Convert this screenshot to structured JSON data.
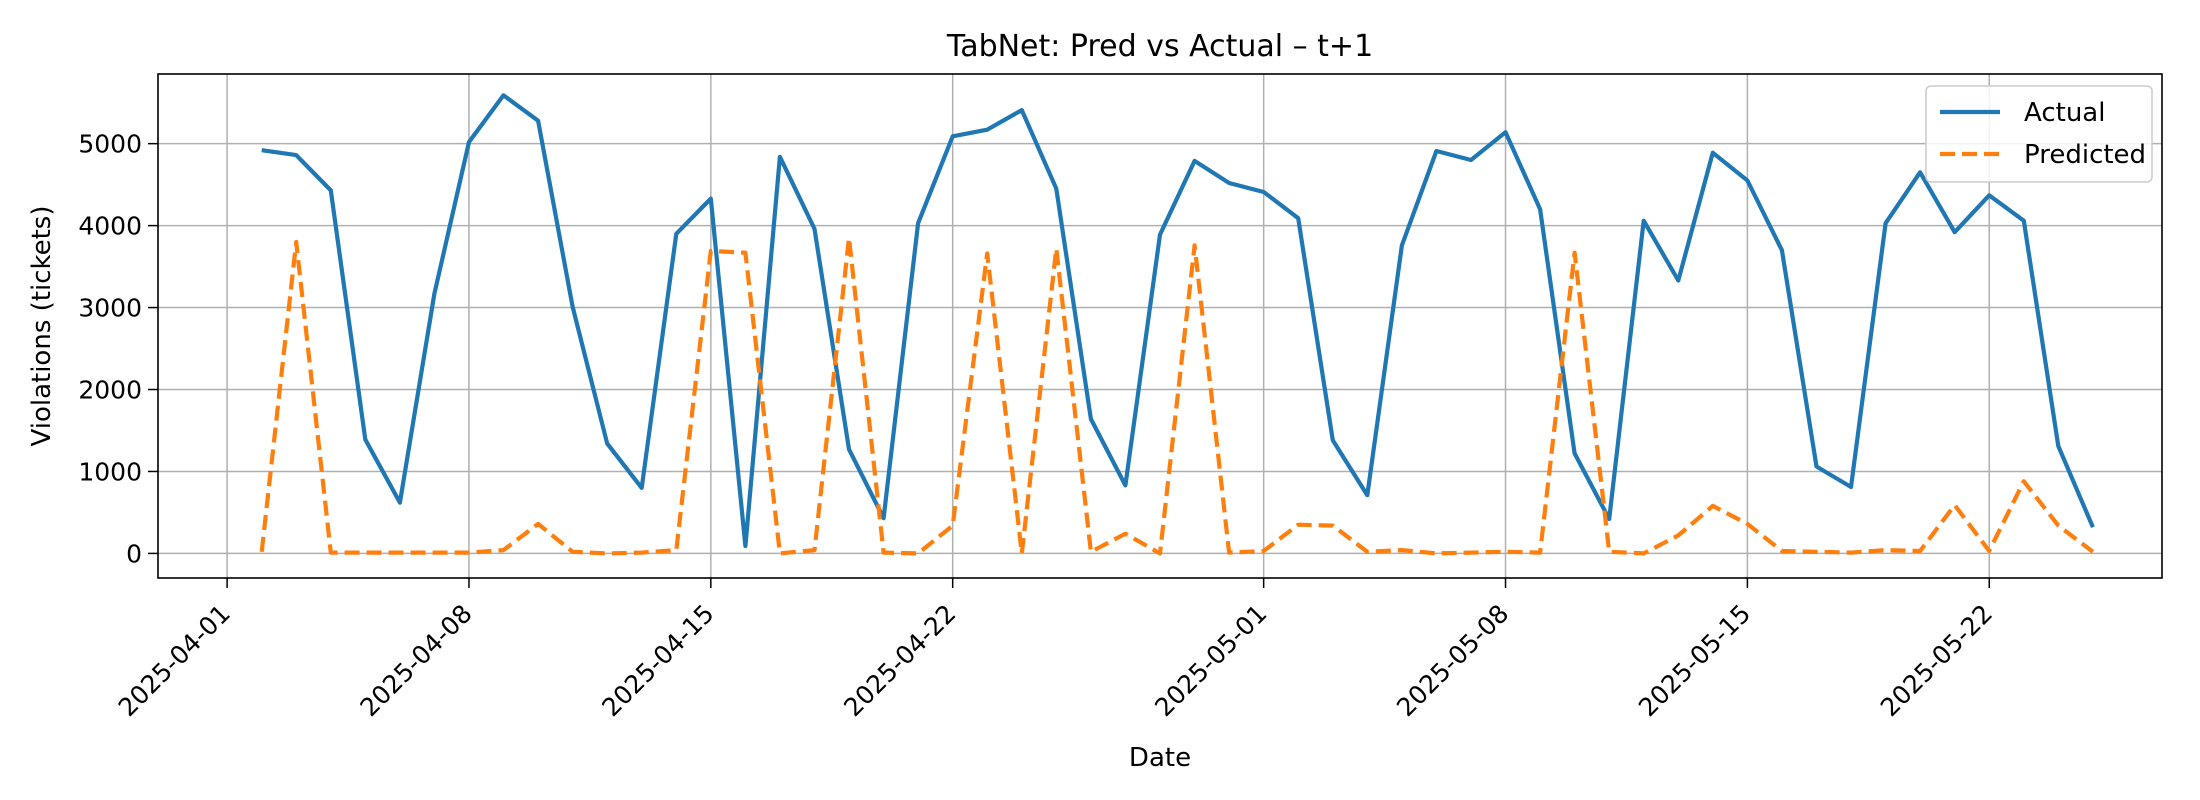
{
  "chart_data": {
    "type": "line",
    "title": "TabNet: Pred vs Actual – t+1",
    "xlabel": "Date",
    "ylabel": "Violations (tickets)",
    "x_start": "2025-04-02",
    "x_step_days": 1,
    "xlim": [
      "2025-03-30",
      "2025-05-27"
    ],
    "ylim": [
      -300,
      5850
    ],
    "x_ticks": [
      "2025-04-01",
      "2025-04-08",
      "2025-04-15",
      "2025-04-22",
      "2025-05-01",
      "2025-05-08",
      "2025-05-15",
      "2025-05-22"
    ],
    "y_ticks": [
      0,
      1000,
      2000,
      3000,
      4000,
      5000
    ],
    "grid": true,
    "legend_position": "top-right",
    "series": [
      {
        "name": "Actual",
        "color": "#1f77b4",
        "style": "solid",
        "values": [
          4920,
          4860,
          4430,
          1390,
          620,
          3170,
          5020,
          5590,
          5280,
          3010,
          1340,
          800,
          3900,
          4330,
          90,
          4840,
          3960,
          1270,
          430,
          4030,
          5090,
          5170,
          5410,
          4450,
          1640,
          830,
          3890,
          4790,
          4520,
          4410,
          4090,
          1380,
          710,
          3760,
          4910,
          4800,
          5140,
          4200,
          1220,
          420,
          4060,
          3330,
          4890,
          4550,
          3700,
          1060,
          810,
          4030,
          4650,
          3920,
          4370,
          4060,
          1310,
          320
        ]
      },
      {
        "name": "Predicted",
        "color": "#ff7f0e",
        "style": "dashed",
        "values": [
          20,
          3800,
          10,
          10,
          10,
          10,
          10,
          40,
          360,
          20,
          0,
          10,
          40,
          3690,
          3670,
          0,
          40,
          3850,
          10,
          0,
          340,
          3660,
          0,
          3720,
          20,
          240,
          0,
          3760,
          10,
          30,
          350,
          340,
          20,
          40,
          0,
          10,
          20,
          10,
          3670,
          20,
          0,
          220,
          580,
          360,
          30,
          20,
          10,
          40,
          30,
          590,
          30,
          880,
          340,
          20
        ]
      }
    ]
  }
}
